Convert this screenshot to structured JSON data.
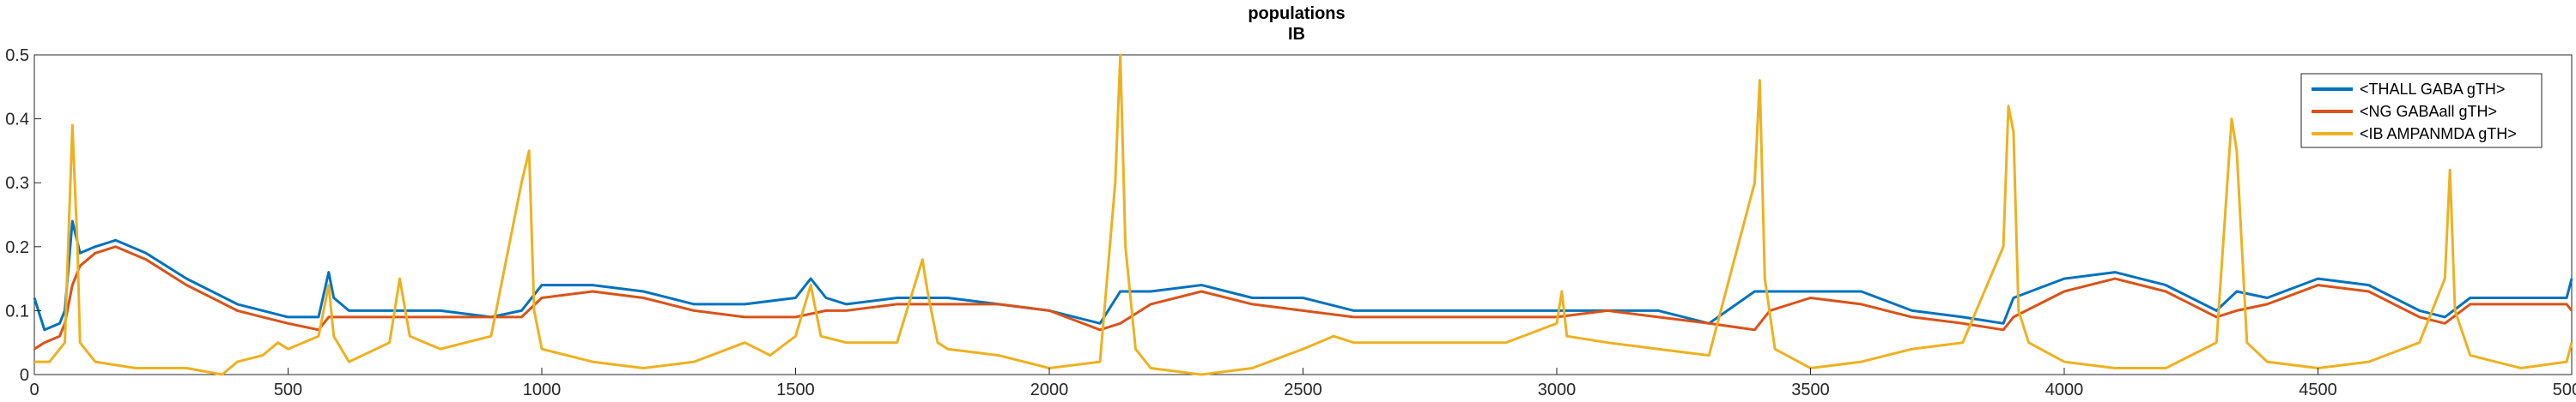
{
  "chart_data": {
    "type": "line",
    "title": "populations",
    "subtitle": "IB",
    "xlabel": "",
    "ylabel": "",
    "xlim": [
      0,
      5000
    ],
    "ylim": [
      0,
      0.5
    ],
    "xticks": [
      0,
      500,
      1000,
      1500,
      2000,
      2500,
      3000,
      3500,
      4000,
      4500,
      5000
    ],
    "yticks": [
      0,
      0.1,
      0.2,
      0.3,
      0.4,
      0.5
    ],
    "xtick_labels": [
      "0",
      "500",
      "1000",
      "1500",
      "2000",
      "2500",
      "3000",
      "3500",
      "4000",
      "4500",
      "5000"
    ],
    "ytick_labels": [
      "0",
      "0.1",
      "0.2",
      "0.3",
      "0.4",
      "0.5"
    ],
    "grid": false,
    "legend_position": "top-right",
    "series": [
      {
        "name": "<THALL GABA gTH>",
        "color": "#0072BD",
        "points": [
          [
            0,
            0.12
          ],
          [
            20,
            0.07
          ],
          [
            50,
            0.08
          ],
          [
            60,
            0.1
          ],
          [
            75,
            0.24
          ],
          [
            90,
            0.19
          ],
          [
            120,
            0.2
          ],
          [
            160,
            0.21
          ],
          [
            220,
            0.19
          ],
          [
            300,
            0.15
          ],
          [
            400,
            0.11
          ],
          [
            450,
            0.1
          ],
          [
            500,
            0.09
          ],
          [
            560,
            0.09
          ],
          [
            580,
            0.16
          ],
          [
            590,
            0.12
          ],
          [
            620,
            0.1
          ],
          [
            700,
            0.1
          ],
          [
            800,
            0.1
          ],
          [
            900,
            0.09
          ],
          [
            960,
            0.1
          ],
          [
            1000,
            0.14
          ],
          [
            1100,
            0.14
          ],
          [
            1200,
            0.13
          ],
          [
            1300,
            0.11
          ],
          [
            1400,
            0.11
          ],
          [
            1500,
            0.12
          ],
          [
            1530,
            0.15
          ],
          [
            1560,
            0.12
          ],
          [
            1600,
            0.11
          ],
          [
            1700,
            0.12
          ],
          [
            1800,
            0.12
          ],
          [
            1900,
            0.11
          ],
          [
            2000,
            0.1
          ],
          [
            2100,
            0.08
          ],
          [
            2140,
            0.13
          ],
          [
            2200,
            0.13
          ],
          [
            2300,
            0.14
          ],
          [
            2400,
            0.12
          ],
          [
            2500,
            0.12
          ],
          [
            2600,
            0.1
          ],
          [
            2700,
            0.1
          ],
          [
            2800,
            0.1
          ],
          [
            2900,
            0.1
          ],
          [
            3000,
            0.1
          ],
          [
            3100,
            0.1
          ],
          [
            3200,
            0.1
          ],
          [
            3300,
            0.08
          ],
          [
            3390,
            0.13
          ],
          [
            3420,
            0.13
          ],
          [
            3500,
            0.13
          ],
          [
            3600,
            0.13
          ],
          [
            3700,
            0.1
          ],
          [
            3800,
            0.09
          ],
          [
            3880,
            0.08
          ],
          [
            3900,
            0.12
          ],
          [
            4000,
            0.15
          ],
          [
            4100,
            0.16
          ],
          [
            4200,
            0.14
          ],
          [
            4300,
            0.1
          ],
          [
            4340,
            0.13
          ],
          [
            4400,
            0.12
          ],
          [
            4500,
            0.15
          ],
          [
            4600,
            0.14
          ],
          [
            4700,
            0.1
          ],
          [
            4750,
            0.09
          ],
          [
            4800,
            0.12
          ],
          [
            4900,
            0.12
          ],
          [
            4990,
            0.12
          ],
          [
            5000,
            0.15
          ]
        ]
      },
      {
        "name": "<NG GABAall gTH>",
        "color": "#D95319",
        "points": [
          [
            0,
            0.04
          ],
          [
            20,
            0.05
          ],
          [
            50,
            0.06
          ],
          [
            60,
            0.08
          ],
          [
            75,
            0.14
          ],
          [
            90,
            0.17
          ],
          [
            120,
            0.19
          ],
          [
            160,
            0.2
          ],
          [
            220,
            0.18
          ],
          [
            300,
            0.14
          ],
          [
            400,
            0.1
          ],
          [
            450,
            0.09
          ],
          [
            500,
            0.08
          ],
          [
            560,
            0.07
          ],
          [
            580,
            0.09
          ],
          [
            620,
            0.09
          ],
          [
            700,
            0.09
          ],
          [
            800,
            0.09
          ],
          [
            900,
            0.09
          ],
          [
            960,
            0.09
          ],
          [
            1000,
            0.12
          ],
          [
            1100,
            0.13
          ],
          [
            1200,
            0.12
          ],
          [
            1300,
            0.1
          ],
          [
            1400,
            0.09
          ],
          [
            1500,
            0.09
          ],
          [
            1560,
            0.1
          ],
          [
            1600,
            0.1
          ],
          [
            1700,
            0.11
          ],
          [
            1800,
            0.11
          ],
          [
            1900,
            0.11
          ],
          [
            2000,
            0.1
          ],
          [
            2100,
            0.07
          ],
          [
            2140,
            0.08
          ],
          [
            2200,
            0.11
          ],
          [
            2300,
            0.13
          ],
          [
            2400,
            0.11
          ],
          [
            2500,
            0.1
          ],
          [
            2600,
            0.09
          ],
          [
            2700,
            0.09
          ],
          [
            2800,
            0.09
          ],
          [
            2900,
            0.09
          ],
          [
            3000,
            0.09
          ],
          [
            3100,
            0.1
          ],
          [
            3200,
            0.09
          ],
          [
            3300,
            0.08
          ],
          [
            3390,
            0.07
          ],
          [
            3420,
            0.1
          ],
          [
            3500,
            0.12
          ],
          [
            3600,
            0.11
          ],
          [
            3700,
            0.09
          ],
          [
            3800,
            0.08
          ],
          [
            3880,
            0.07
          ],
          [
            3900,
            0.09
          ],
          [
            4000,
            0.13
          ],
          [
            4100,
            0.15
          ],
          [
            4200,
            0.13
          ],
          [
            4300,
            0.09
          ],
          [
            4340,
            0.1
          ],
          [
            4400,
            0.11
          ],
          [
            4500,
            0.14
          ],
          [
            4600,
            0.13
          ],
          [
            4700,
            0.09
          ],
          [
            4750,
            0.08
          ],
          [
            4800,
            0.11
          ],
          [
            4900,
            0.11
          ],
          [
            4990,
            0.11
          ],
          [
            5000,
            0.1
          ]
        ]
      },
      {
        "name": "<IB AMPANMDA gTH>",
        "color": "#EDB120",
        "points": [
          [
            0,
            0.02
          ],
          [
            30,
            0.02
          ],
          [
            60,
            0.05
          ],
          [
            75,
            0.39
          ],
          [
            85,
            0.2
          ],
          [
            90,
            0.05
          ],
          [
            120,
            0.02
          ],
          [
            200,
            0.01
          ],
          [
            300,
            0.01
          ],
          [
            370,
            0.0
          ],
          [
            400,
            0.02
          ],
          [
            450,
            0.03
          ],
          [
            480,
            0.05
          ],
          [
            500,
            0.04
          ],
          [
            560,
            0.06
          ],
          [
            580,
            0.14
          ],
          [
            590,
            0.06
          ],
          [
            620,
            0.02
          ],
          [
            700,
            0.05
          ],
          [
            720,
            0.15
          ],
          [
            740,
            0.06
          ],
          [
            800,
            0.04
          ],
          [
            900,
            0.06
          ],
          [
            960,
            0.3
          ],
          [
            975,
            0.35
          ],
          [
            985,
            0.1
          ],
          [
            1000,
            0.04
          ],
          [
            1100,
            0.02
          ],
          [
            1200,
            0.01
          ],
          [
            1300,
            0.02
          ],
          [
            1400,
            0.05
          ],
          [
            1450,
            0.03
          ],
          [
            1500,
            0.06
          ],
          [
            1530,
            0.14
          ],
          [
            1550,
            0.06
          ],
          [
            1600,
            0.05
          ],
          [
            1700,
            0.05
          ],
          [
            1750,
            0.18
          ],
          [
            1760,
            0.13
          ],
          [
            1780,
            0.05
          ],
          [
            1800,
            0.04
          ],
          [
            1900,
            0.03
          ],
          [
            2000,
            0.01
          ],
          [
            2100,
            0.02
          ],
          [
            2130,
            0.3
          ],
          [
            2140,
            0.5
          ],
          [
            2150,
            0.2
          ],
          [
            2170,
            0.04
          ],
          [
            2200,
            0.01
          ],
          [
            2300,
            0.0
          ],
          [
            2400,
            0.01
          ],
          [
            2500,
            0.04
          ],
          [
            2560,
            0.06
          ],
          [
            2600,
            0.05
          ],
          [
            2700,
            0.05
          ],
          [
            2800,
            0.05
          ],
          [
            2900,
            0.05
          ],
          [
            3000,
            0.08
          ],
          [
            3010,
            0.13
          ],
          [
            3020,
            0.06
          ],
          [
            3100,
            0.05
          ],
          [
            3200,
            0.04
          ],
          [
            3300,
            0.03
          ],
          [
            3390,
            0.3
          ],
          [
            3400,
            0.46
          ],
          [
            3410,
            0.15
          ],
          [
            3430,
            0.04
          ],
          [
            3500,
            0.01
          ],
          [
            3600,
            0.02
          ],
          [
            3700,
            0.04
          ],
          [
            3800,
            0.05
          ],
          [
            3880,
            0.2
          ],
          [
            3890,
            0.42
          ],
          [
            3900,
            0.38
          ],
          [
            3910,
            0.1
          ],
          [
            3930,
            0.05
          ],
          [
            4000,
            0.02
          ],
          [
            4100,
            0.01
          ],
          [
            4200,
            0.01
          ],
          [
            4300,
            0.05
          ],
          [
            4330,
            0.4
          ],
          [
            4340,
            0.35
          ],
          [
            4360,
            0.05
          ],
          [
            4400,
            0.02
          ],
          [
            4500,
            0.01
          ],
          [
            4600,
            0.02
          ],
          [
            4700,
            0.05
          ],
          [
            4750,
            0.15
          ],
          [
            4760,
            0.32
          ],
          [
            4770,
            0.1
          ],
          [
            4800,
            0.03
          ],
          [
            4900,
            0.01
          ],
          [
            4990,
            0.02
          ],
          [
            5000,
            0.05
          ]
        ]
      }
    ]
  }
}
